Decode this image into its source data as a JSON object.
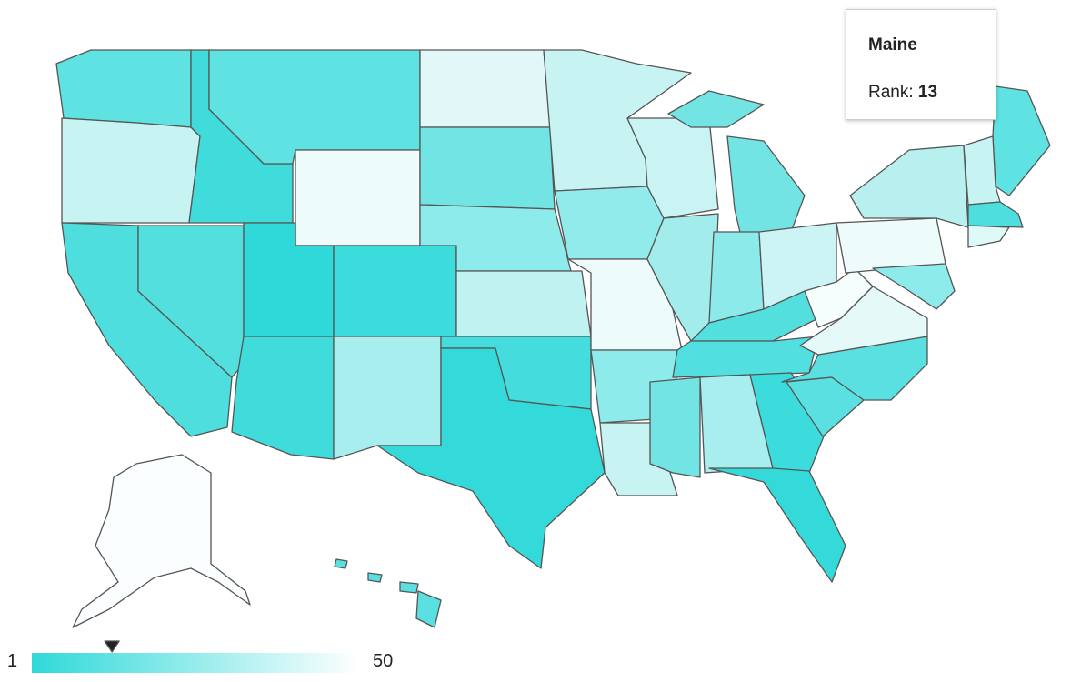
{
  "tooltip": {
    "title": "Maine",
    "label": "Rank:",
    "value": 13
  },
  "legend": {
    "min": 1,
    "max": 50
  }
}
